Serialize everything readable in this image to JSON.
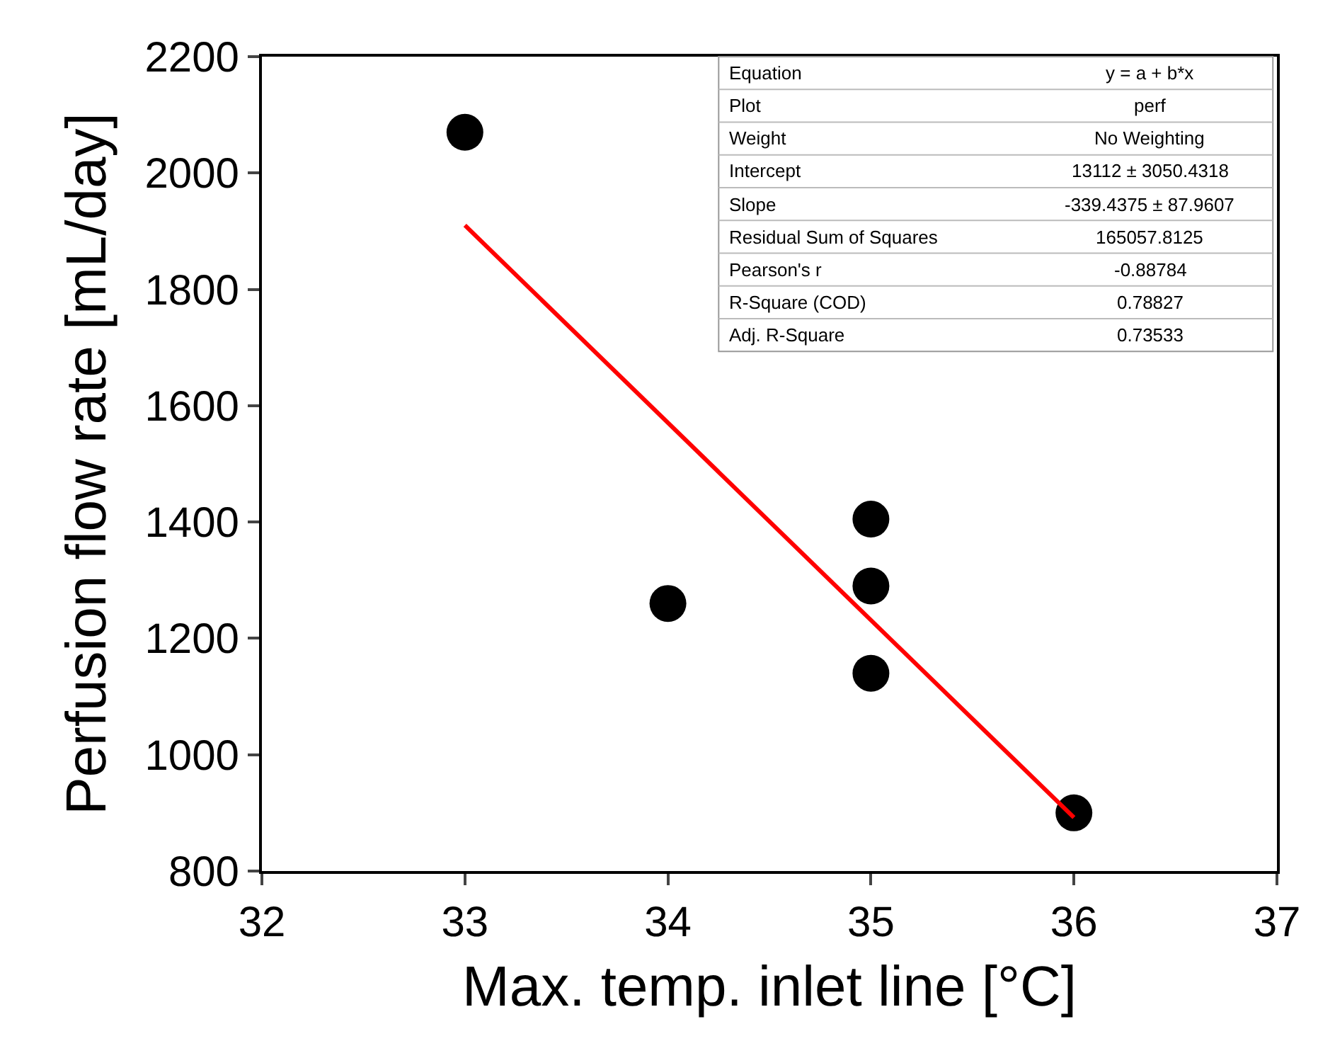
{
  "chart_data": {
    "type": "scatter",
    "xlabel": "Max. temp. inlet line [°C]",
    "ylabel": "Perfusion flow rate [mL/day]",
    "xlim": [
      32,
      37
    ],
    "xticks": [
      32,
      33,
      34,
      35,
      36,
      37
    ],
    "ylim": [
      800,
      2200
    ],
    "yticks": [
      800,
      1000,
      1200,
      1400,
      1600,
      1800,
      2000,
      2200
    ],
    "marker": "circle",
    "series": [
      {
        "color": "#000000",
        "x": [
          33,
          34,
          35,
          35,
          35,
          36
        ],
        "values": [
          2070,
          1260,
          1405,
          1290,
          1140,
          900
        ]
      },
      {
        "type": "line",
        "marker": "none",
        "color": "#ff0000",
        "x": [
          33,
          36
        ],
        "values": [
          1910,
          892
        ]
      }
    ],
    "annotations": [
      "Equation",
      "y = a + b*x",
      "Plot",
      "perf",
      "Weight",
      "No Weighting",
      "Intercept",
      "13112 ± 3050.4318",
      "Slope",
      "-339.4375 ± 87.9607",
      "Residual Sum of Squares",
      "165057.8125",
      "Pearson's r",
      "-0.88784",
      "R-Square (COD)",
      "0.78827",
      "Adj. R-Square",
      "0.73533"
    ]
  }
}
